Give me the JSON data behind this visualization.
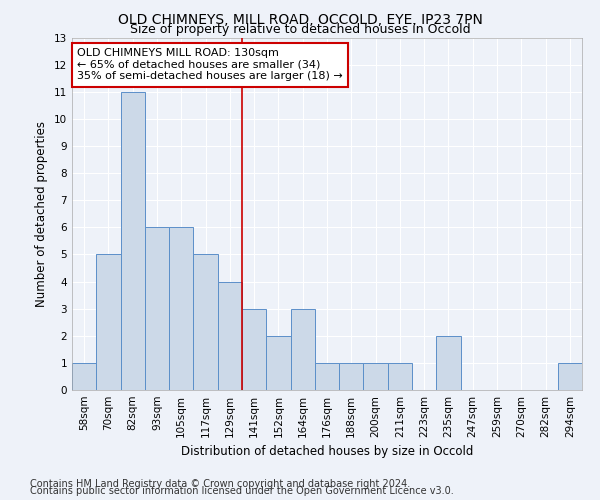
{
  "title1": "OLD CHIMNEYS, MILL ROAD, OCCOLD, EYE, IP23 7PN",
  "title2": "Size of property relative to detached houses in Occold",
  "xlabel": "Distribution of detached houses by size in Occold",
  "ylabel": "Number of detached properties",
  "categories": [
    "58sqm",
    "70sqm",
    "82sqm",
    "93sqm",
    "105sqm",
    "117sqm",
    "129sqm",
    "141sqm",
    "152sqm",
    "164sqm",
    "176sqm",
    "188sqm",
    "200sqm",
    "211sqm",
    "223sqm",
    "235sqm",
    "247sqm",
    "259sqm",
    "270sqm",
    "282sqm",
    "294sqm"
  ],
  "values": [
    1,
    5,
    11,
    6,
    6,
    5,
    4,
    3,
    2,
    3,
    1,
    1,
    1,
    1,
    0,
    2,
    0,
    0,
    0,
    0,
    1
  ],
  "bar_color": "#ccd9e8",
  "bar_edge_color": "#5b8fc9",
  "ref_line_x": 6.5,
  "ref_line_color": "#cc0000",
  "annotation_line1": "OLD CHIMNEYS MILL ROAD: 130sqm",
  "annotation_line2": "← 65% of detached houses are smaller (34)",
  "annotation_line3": "35% of semi-detached houses are larger (18) →",
  "annotation_box_color": "#ffffff",
  "annotation_box_edge_color": "#cc0000",
  "ylim": [
    0,
    13
  ],
  "yticks": [
    0,
    1,
    2,
    3,
    4,
    5,
    6,
    7,
    8,
    9,
    10,
    11,
    12,
    13
  ],
  "footer1": "Contains HM Land Registry data © Crown copyright and database right 2024.",
  "footer2": "Contains public sector information licensed under the Open Government Licence v3.0.",
  "bg_color": "#eef2f9",
  "grid_color": "#ffffff",
  "title1_fontsize": 10,
  "title2_fontsize": 9,
  "tick_fontsize": 7.5,
  "label_fontsize": 8.5,
  "footer_fontsize": 7,
  "ann_fontsize": 8
}
